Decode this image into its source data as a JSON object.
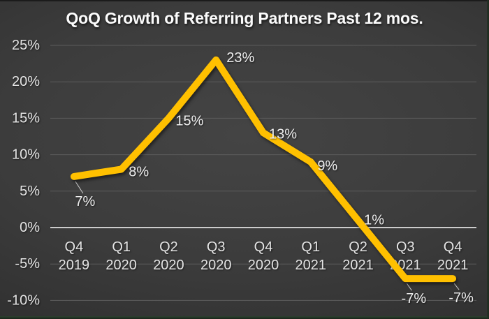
{
  "colors": {
    "line": "#FFC000",
    "background": "#3A3A3A",
    "grid_line": "#5C5C5C",
    "zero_axis": "#CCCCCC",
    "label_text": "#E6E6E6",
    "title_text": "#FCFCFC",
    "leader_line": "#C9C9C9"
  },
  "chart_data": {
    "type": "line",
    "title": "QoQ Growth of Referring Partners Past 12 mos.",
    "categories": [
      "Q4 2019",
      "Q1 2020",
      "Q2 2020",
      "Q3 2020",
      "Q4 2020",
      "Q1 2021",
      "Q2 2021",
      "Q3 2021",
      "Q4 2021"
    ],
    "category_labels": [
      [
        "Q4",
        "2019"
      ],
      [
        "Q1",
        "2020"
      ],
      [
        "Q2",
        "2020"
      ],
      [
        "Q3",
        "2020"
      ],
      [
        "Q4",
        "2020"
      ],
      [
        "Q1",
        "2021"
      ],
      [
        "Q2",
        "2021"
      ],
      [
        "Q3",
        "2021"
      ],
      [
        "Q4",
        "2021"
      ]
    ],
    "values": [
      7,
      8,
      15,
      23,
      13,
      9,
      1,
      -7,
      -7
    ],
    "data_labels": [
      "7%",
      "8%",
      "15%",
      "23%",
      "13%",
      "9%",
      "1%",
      "-7%",
      "-7%"
    ],
    "y_ticks": [
      25,
      20,
      15,
      10,
      5,
      0,
      -5,
      -10
    ],
    "y_tick_labels": [
      "25%",
      "20%",
      "15%",
      "10%",
      "5%",
      "0%",
      "-5%",
      "-10%"
    ],
    "ylim": [
      -10,
      25
    ],
    "xlabel": "",
    "ylabel": "",
    "grid": true,
    "legend": false
  }
}
